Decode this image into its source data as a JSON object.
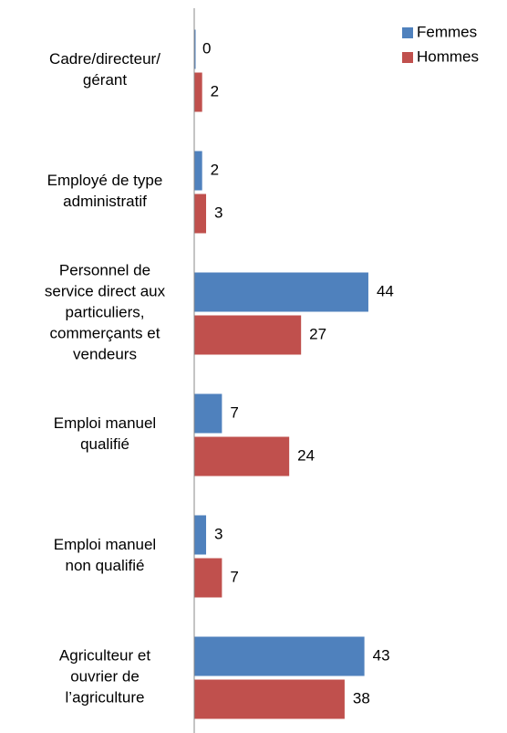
{
  "chart_data": {
    "type": "bar",
    "orientation": "horizontal",
    "categories": [
      "Cadre/directeur/\ngérant",
      "Employé de type\nadministratif",
      "Personnel de\nservice direct aux\nparticuliers,\ncommerçants et\nvendeurs",
      "Emploi manuel\nqualifié",
      "Emploi manuel\nnon qualifié",
      "Agriculteur et\nouvrier de\nl’agriculture"
    ],
    "series": [
      {
        "name": "Femmes",
        "color": "#4f81bd",
        "values": [
          0,
          2,
          44,
          7,
          3,
          43
        ]
      },
      {
        "name": "Hommes",
        "color": "#c0504d",
        "values": [
          2,
          3,
          27,
          24,
          7,
          38
        ]
      }
    ],
    "xlim": [
      0,
      50
    ],
    "legend": "top-right"
  }
}
